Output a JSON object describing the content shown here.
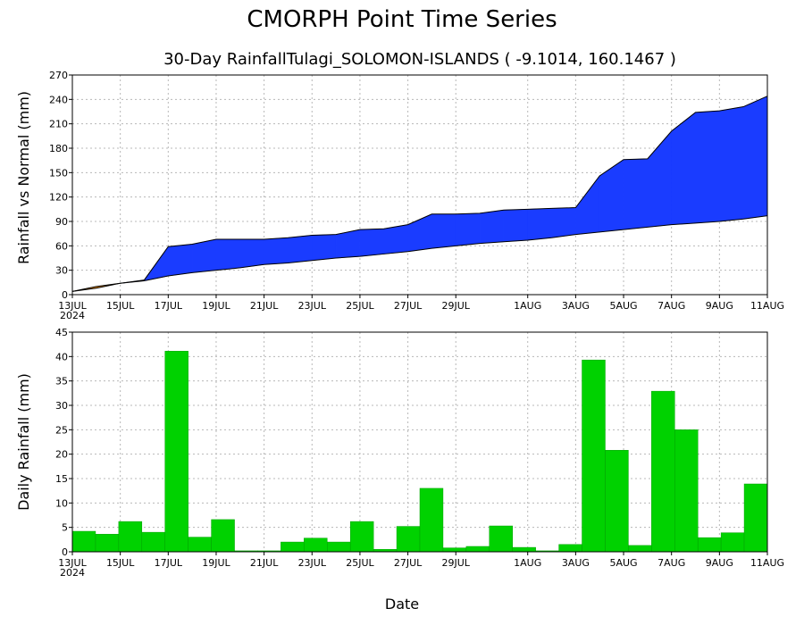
{
  "header": {
    "title": "CMORPH Point Time Series",
    "subtitle": "30-Day RainfallTulagi_SOLOMON-ISLANDS ( -9.1014, 160.1467 )"
  },
  "chart_data": [
    {
      "type": "area",
      "ylabel": "Rainfall vs Normal (mm)",
      "xlabel": "",
      "ylim": [
        0,
        270
      ],
      "yticks": [
        0,
        30,
        60,
        90,
        120,
        150,
        180,
        210,
        240,
        270
      ],
      "x_day_range": [
        0,
        29
      ],
      "xtick_days": [
        0,
        2,
        4,
        6,
        8,
        10,
        12,
        14,
        16,
        19,
        21,
        23,
        25,
        27,
        29
      ],
      "xtick_labels": [
        "13JUL",
        "15JUL",
        "17JUL",
        "19JUL",
        "21JUL",
        "23JUL",
        "25JUL",
        "27JUL",
        "29JUL",
        "1AUG",
        "3AUG",
        "5AUG",
        "7AUG",
        "9AUG",
        "11AUG"
      ],
      "year_label": "2024",
      "grid": true,
      "dates": [
        "13JUL",
        "14JUL",
        "15JUL",
        "16JUL",
        "17JUL",
        "18JUL",
        "19JUL",
        "20JUL",
        "21JUL",
        "22JUL",
        "23JUL",
        "24JUL",
        "25JUL",
        "26JUL",
        "27JUL",
        "28JUL",
        "29JUL",
        "30JUL",
        "31JUL",
        "1AUG",
        "2AUG",
        "3AUG",
        "4AUG",
        "5AUG",
        "6AUG",
        "7AUG",
        "8AUG",
        "9AUG",
        "10AUG",
        "11AUG"
      ],
      "series": [
        {
          "name": "",
          "color": "#1a3cff",
          "values": [
            4,
            8,
            14,
            18,
            59,
            62,
            68,
            68,
            68,
            70,
            73,
            74,
            80,
            81,
            86,
            99,
            99,
            100,
            104,
            105,
            106,
            107,
            146,
            166,
            167,
            201,
            224,
            226,
            231,
            244
          ]
        },
        {
          "name": "",
          "color": "#ff9a00",
          "values": [
            4,
            10,
            14,
            17,
            23,
            27,
            30,
            33,
            37,
            39,
            42,
            45,
            47,
            50,
            53,
            57,
            60,
            63,
            65,
            67,
            70,
            74,
            77,
            80,
            83,
            86,
            88,
            90,
            93,
            97
          ]
        }
      ]
    },
    {
      "type": "bar",
      "ylabel": "Daily Rainfall (mm)",
      "xlabel": "Date",
      "ylim": [
        0,
        45
      ],
      "yticks": [
        0,
        5,
        10,
        15,
        20,
        25,
        30,
        35,
        40,
        45
      ],
      "xtick_days": [
        0,
        2,
        4,
        6,
        8,
        10,
        12,
        14,
        16,
        19,
        21,
        23,
        25,
        27,
        29
      ],
      "xtick_labels": [
        "13JUL",
        "15JUL",
        "17JUL",
        "19JUL",
        "21JUL",
        "23JUL",
        "25JUL",
        "27JUL",
        "29JUL",
        "1AUG",
        "3AUG",
        "5AUG",
        "7AUG",
        "9AUG",
        "11AUG"
      ],
      "year_label": "2024",
      "grid": true,
      "bar_color": "#00d200",
      "categories": [
        "13JUL",
        "14JUL",
        "15JUL",
        "16JUL",
        "17JUL",
        "18JUL",
        "19JUL",
        "20JUL",
        "21JUL",
        "22JUL",
        "23JUL",
        "24JUL",
        "25JUL",
        "26JUL",
        "27JUL",
        "28JUL",
        "29JUL",
        "30JUL",
        "31JUL",
        "1AUG",
        "2AUG",
        "3AUG",
        "4AUG",
        "5AUG",
        "6AUG",
        "7AUG",
        "8AUG",
        "9AUG",
        "10AUG",
        "11AUG"
      ],
      "values": [
        4.2,
        3.6,
        6.2,
        4.0,
        41.1,
        3.0,
        6.6,
        0.2,
        0.2,
        2.0,
        2.8,
        2.0,
        6.2,
        0.5,
        5.2,
        13.0,
        0.8,
        1.1,
        5.3,
        0.9,
        0.2,
        1.5,
        39.3,
        20.8,
        1.3,
        32.9,
        25.0,
        2.9,
        3.9,
        13.9
      ]
    }
  ]
}
